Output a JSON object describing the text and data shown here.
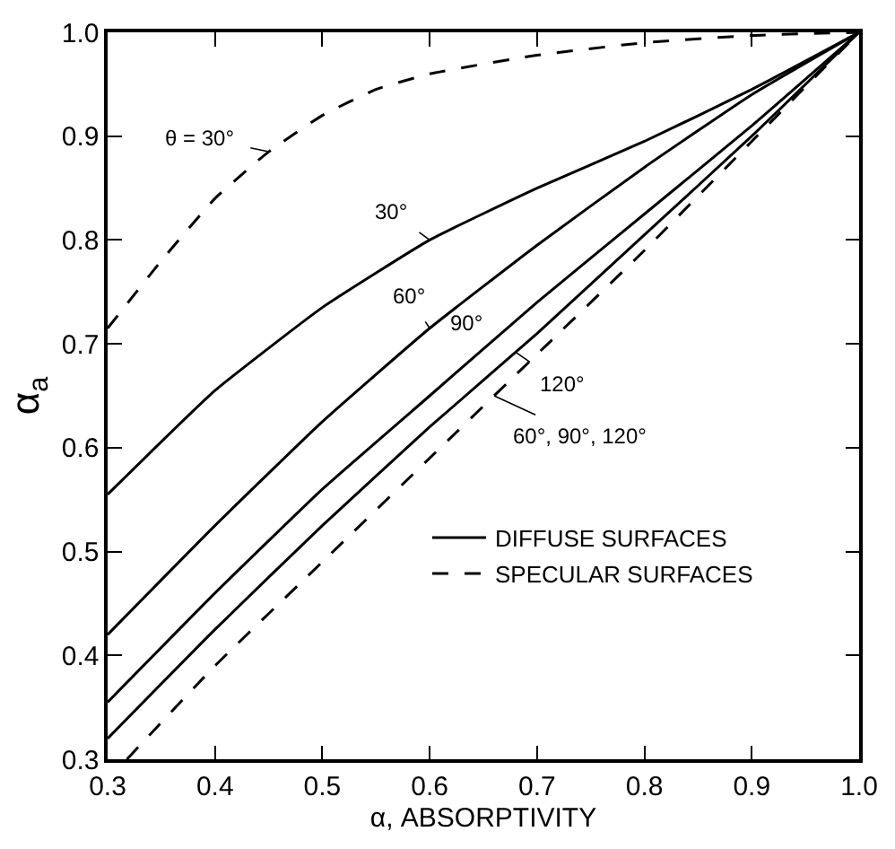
{
  "chart_data": {
    "type": "line",
    "xlabel": "α, ABSORPTIVITY",
    "ylabel": "α$_{a}$",
    "xlim": [
      0.3,
      1.0
    ],
    "ylim": [
      0.3,
      1.0
    ],
    "xticks": [
      0.3,
      0.4,
      0.5,
      0.6,
      0.7,
      0.8,
      0.9,
      {
        "value": 1.0,
        "label": "1.0"
      }
    ],
    "yticks": [
      0.3,
      0.4,
      0.5,
      0.6,
      0.7,
      0.8,
      0.9,
      {
        "value": 1.0,
        "label": "1.0"
      }
    ],
    "legend": "right",
    "marker": "none",
    "series": [
      {
        "name": "DIFFUSE SURFACES",
        "color": "#000000",
        "line_style": "solid",
        "x": [
          0.3,
          0.4,
          0.5,
          0.6,
          0.7,
          0.8,
          0.9,
          1.0
        ],
        "values": [
          0.555,
          0.655,
          0.735,
          0.8,
          0.85,
          0.895,
          0.945,
          1.0
        ]
      },
      {
        "color": "#000000",
        "line_style": "solid",
        "x": [
          0.3,
          0.4,
          0.5,
          0.6,
          0.7,
          0.8,
          0.9,
          1.0
        ],
        "values": [
          0.42,
          0.525,
          0.625,
          0.715,
          0.795,
          0.87,
          0.94,
          1.0
        ]
      },
      {
        "color": "#000000",
        "line_style": "solid",
        "x": [
          0.3,
          0.4,
          0.5,
          0.6,
          0.7,
          0.8,
          0.9,
          1.0
        ],
        "values": [
          0.355,
          0.46,
          0.56,
          0.65,
          0.74,
          0.825,
          0.91,
          1.0
        ]
      },
      {
        "color": "#000000",
        "line_style": "solid",
        "x": [
          0.3,
          0.4,
          0.5,
          0.6,
          0.7,
          0.8,
          0.9,
          1.0
        ],
        "values": [
          0.32,
          0.425,
          0.525,
          0.62,
          0.71,
          0.805,
          0.9,
          1.0
        ]
      },
      {
        "name": "SPECULAR SURFACES",
        "color": "#000000",
        "line_style": "dashed",
        "x": [
          0.3,
          0.35,
          0.4,
          0.45,
          0.5,
          0.55,
          0.6,
          0.7,
          0.8,
          0.9,
          1.0
        ],
        "values": [
          0.715,
          0.78,
          0.84,
          0.885,
          0.92,
          0.945,
          0.96,
          0.978,
          0.99,
          0.997,
          1.0
        ]
      },
      {
        "color": "#000000",
        "line_style": "dashed",
        "x": [
          0.318,
          0.4,
          0.5,
          0.6,
          0.7,
          0.8,
          0.9,
          1.0
        ],
        "values": [
          0.3,
          0.39,
          0.49,
          0.59,
          0.69,
          0.79,
          0.895,
          1.0
        ]
      }
    ],
    "annotations": [
      {
        "text": "θ = 30°",
        "x": 0.45,
        "y": 0.885
      },
      {
        "text": "30°",
        "x": 0.6,
        "y": 0.8
      },
      {
        "text": "60°",
        "x": 0.6,
        "y": 0.715
      },
      {
        "text": "90°",
        "x": 0.65,
        "y": 0.695
      },
      {
        "text": "120°",
        "x": 0.68,
        "y": 0.692
      },
      {
        "text": "60°, 90°, 120°",
        "x": 0.66,
        "y": 0.65
      }
    ]
  }
}
